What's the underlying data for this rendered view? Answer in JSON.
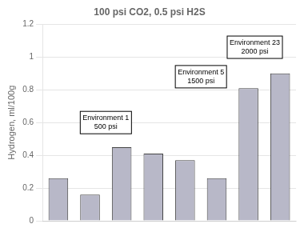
{
  "chart_data": {
    "type": "bar",
    "title": "100 psi CO2, 0.5 psi H2S",
    "ylabel": "Hydrogen, ml/100g",
    "categories": [
      null,
      null,
      null,
      null,
      null,
      null,
      null,
      null
    ],
    "values": [
      0.26,
      0.16,
      0.45,
      0.41,
      0.37,
      0.26,
      0.81,
      0.9
    ],
    "color": "#b8b8c8",
    "ylim": [
      0,
      1.2
    ],
    "yticks": [
      0,
      0.2,
      0.4,
      0.6,
      0.8,
      1.0,
      1.2
    ],
    "grid": true,
    "tick_labels": "y",
    "annotations": [
      "Environment 1\n500 psi",
      "Environment 5\n1500 psi",
      "Environment 23\n2000 psi"
    ]
  }
}
